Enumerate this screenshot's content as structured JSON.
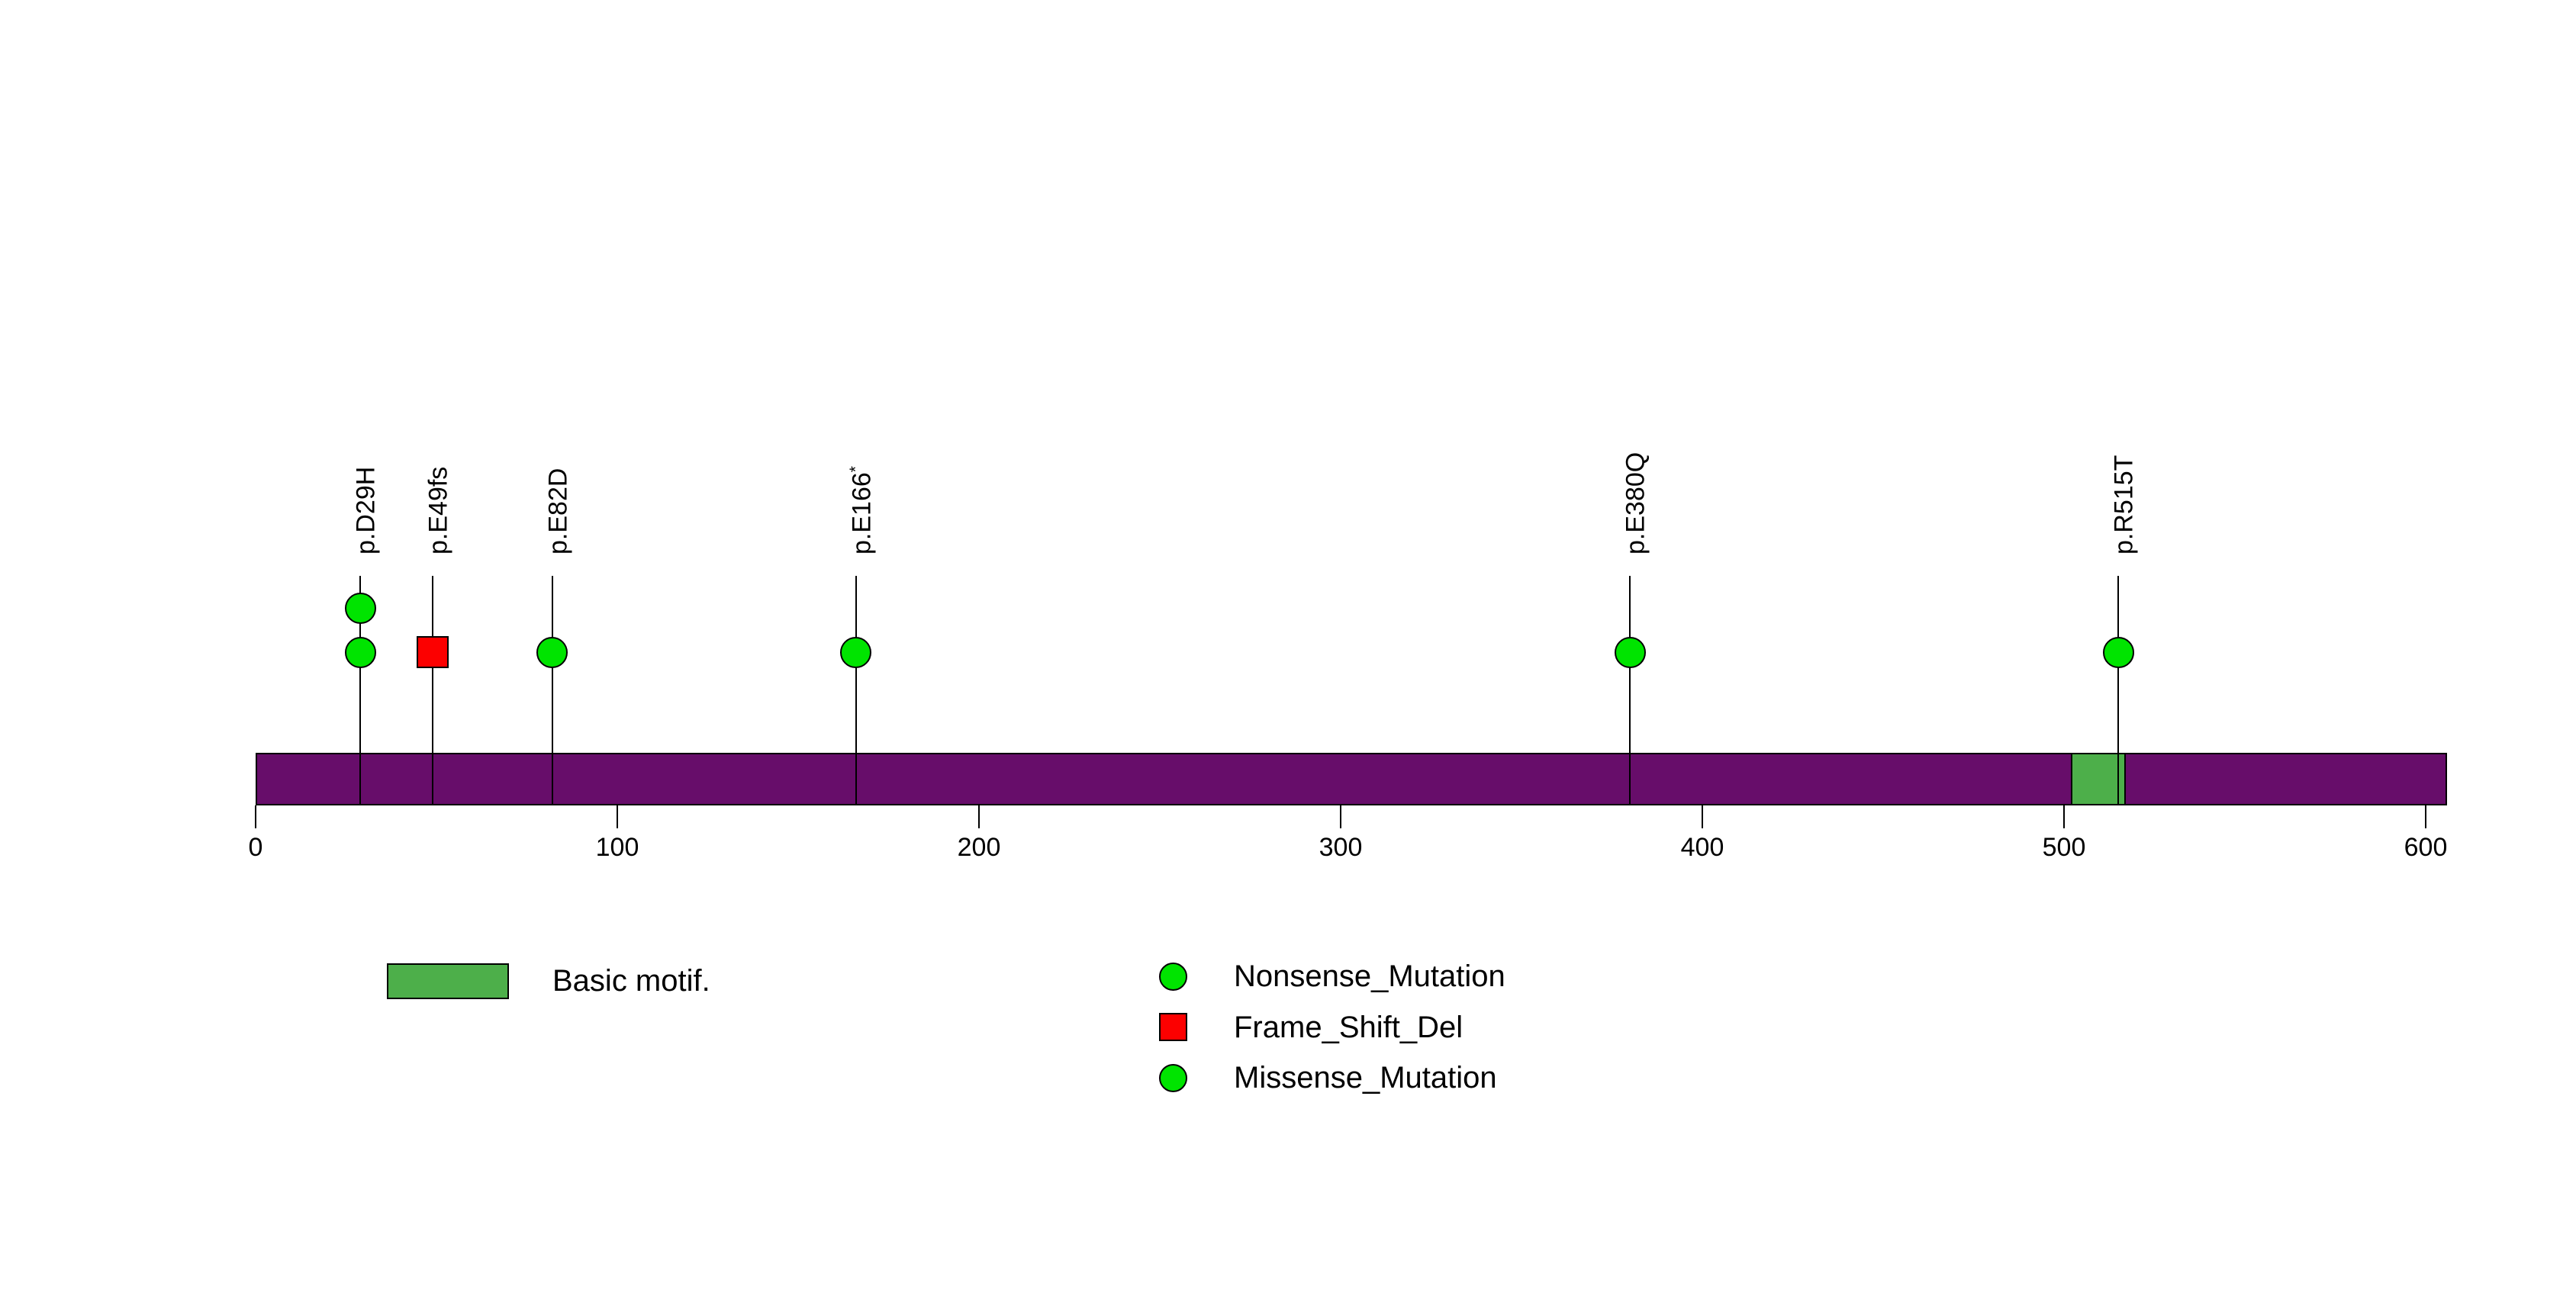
{
  "figure": {
    "background": "#ffffff",
    "colors": {
      "backbone_purple": "#670D6A",
      "domain_green": "#4DAF4A",
      "mutation_green": "#00E400",
      "mutation_red": "#FC0000",
      "stroke_black": "#000000"
    }
  },
  "chart_data": {
    "type": "lollipop",
    "title": "",
    "xlabel": "",
    "ylabel": "",
    "protein_length_aa": 606,
    "xlim": [
      0,
      606
    ],
    "x_ticks": [
      0,
      100,
      200,
      300,
      400,
      500,
      600
    ],
    "grid": false,
    "backbone_color": "#670D6A",
    "domains": [
      {
        "label": "Basic motif.",
        "start_aa": 502,
        "end_aa": 517,
        "color": "#4DAF4A"
      }
    ],
    "mutations": [
      {
        "label": "p.D29H",
        "position_aa": 29,
        "shape": "circle",
        "color": "#00E400",
        "marker_count": 2
      },
      {
        "label": "p.E49fs",
        "position_aa": 49,
        "shape": "square",
        "color": "#FC0000",
        "marker_count": 1
      },
      {
        "label": "p.E82D",
        "position_aa": 82,
        "shape": "circle",
        "color": "#00E400",
        "marker_count": 1
      },
      {
        "label": "p.E166",
        "label_sup": "*",
        "position_aa": 166,
        "shape": "circle",
        "color": "#00E400",
        "marker_count": 1
      },
      {
        "label": "p.E380Q",
        "position_aa": 380,
        "shape": "circle",
        "color": "#00E400",
        "marker_count": 1
      },
      {
        "label": "p.R515T",
        "position_aa": 515,
        "shape": "circle",
        "color": "#00E400",
        "marker_count": 1
      }
    ],
    "legend": {
      "domain_items": [
        {
          "label": "Basic motif.",
          "swatch": "rect",
          "color": "#4DAF4A"
        }
      ],
      "mutation_items": [
        {
          "label": "Nonsense_Mutation",
          "swatch": "circle",
          "color": "#00E400"
        },
        {
          "label": "Frame_Shift_Del",
          "swatch": "square",
          "color": "#FC0000"
        },
        {
          "label": "Missense_Mutation",
          "swatch": "circle",
          "color": "#00E400"
        }
      ],
      "legend_position": "bottom"
    }
  }
}
